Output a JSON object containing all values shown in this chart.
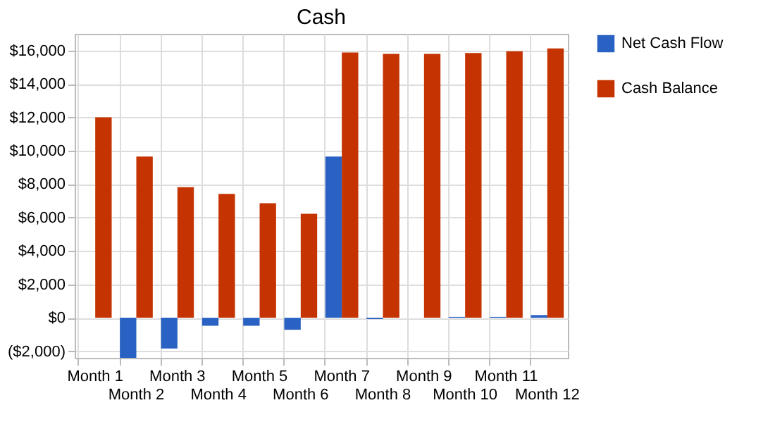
{
  "chart_data": {
    "type": "bar",
    "title": "Cash",
    "categories": [
      "Month 1",
      "Month 2",
      "Month 3",
      "Month 4",
      "Month 5",
      "Month 6",
      "Month 7",
      "Month 8",
      "Month 9",
      "Month 10",
      "Month 11",
      "Month 12"
    ],
    "series": [
      {
        "name": "Net Cash Flow",
        "color": "#2a62c4",
        "values": [
          0,
          -2400,
          -1840,
          -480,
          -480,
          -720,
          9650,
          -80,
          0,
          50,
          50,
          160
        ]
      },
      {
        "name": "Cash Balance",
        "color": "#c43300",
        "values": [
          12000,
          9650,
          7820,
          7420,
          6860,
          6220,
          15880,
          15800,
          15800,
          15850,
          15960,
          16120
        ]
      }
    ],
    "ylim": [
      -2400,
      17000
    ],
    "yticks": [
      {
        "value": -2000,
        "label": "($2,000)"
      },
      {
        "value": 0,
        "label": "$0"
      },
      {
        "value": 2000,
        "label": "$2,000"
      },
      {
        "value": 4000,
        "label": "$4,000"
      },
      {
        "value": 6000,
        "label": "$6,000"
      },
      {
        "value": 8000,
        "label": "$8,000"
      },
      {
        "value": 10000,
        "label": "$10,000"
      },
      {
        "value": 12000,
        "label": "$12,000"
      },
      {
        "value": 14000,
        "label": "$14,000"
      },
      {
        "value": 16000,
        "label": "$16,000"
      }
    ],
    "grid": true,
    "legend": "right"
  }
}
